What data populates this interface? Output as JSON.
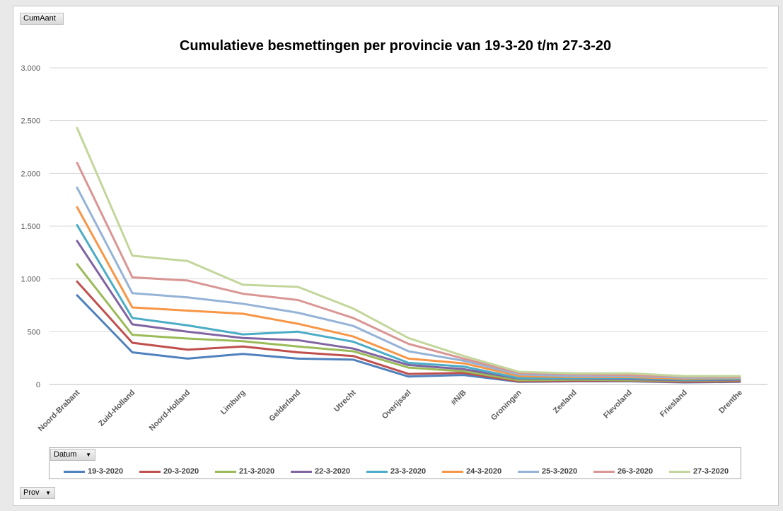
{
  "field_buttons": {
    "value_field": "CumAant",
    "legend_field": "Datum",
    "axis_field": "Prov"
  },
  "chart_data": {
    "type": "line",
    "title": "Cumulatieve besmettingen per provincie van 19-3-20 t/m 27-3-20",
    "xlabel": "",
    "ylabel": "",
    "ylim": [
      0,
      3000
    ],
    "yticks": [
      0,
      500,
      1000,
      1500,
      2000,
      2500,
      3000
    ],
    "ytick_labels": [
      "0",
      "500",
      "1.000",
      "1.500",
      "2.000",
      "2.500",
      "3.000"
    ],
    "grid": true,
    "legend_position": "bottom",
    "categories": [
      "Noord-Brabant",
      "Zuid-Holland",
      "Noord-Holland",
      "Limburg",
      "Gelderland",
      "Utrecht",
      "Overijssel",
      "#N/B",
      "Groningen",
      "Zeeland",
      "Flevoland",
      "Friesland",
      "Drenthe"
    ],
    "series": [
      {
        "name": "19-3-2020",
        "color": "#4f81bd",
        "values": [
          845,
          305,
          245,
          290,
          245,
          235,
          75,
          90,
          25,
          30,
          30,
          20,
          25
        ]
      },
      {
        "name": "20-3-2020",
        "color": "#c0504d",
        "values": [
          975,
          395,
          330,
          360,
          305,
          270,
          100,
          110,
          30,
          35,
          35,
          25,
          30
        ]
      },
      {
        "name": "21-3-2020",
        "color": "#9bbb59",
        "values": [
          1140,
          470,
          435,
          410,
          360,
          315,
          160,
          125,
          40,
          45,
          40,
          35,
          40
        ]
      },
      {
        "name": "22-3-2020",
        "color": "#8064a2",
        "values": [
          1360,
          570,
          500,
          440,
          420,
          340,
          185,
          145,
          55,
          55,
          50,
          40,
          45
        ]
      },
      {
        "name": "23-3-2020",
        "color": "#4bacc6",
        "values": [
          1510,
          630,
          560,
          475,
          500,
          405,
          205,
          170,
          60,
          60,
          60,
          45,
          50
        ]
      },
      {
        "name": "24-3-2020",
        "color": "#f79646",
        "values": [
          1680,
          730,
          700,
          670,
          575,
          455,
          245,
          200,
          80,
          70,
          70,
          55,
          60
        ]
      },
      {
        "name": "25-3-2020",
        "color": "#95b3d7",
        "values": [
          1865,
          865,
          825,
          765,
          680,
          555,
          315,
          225,
          95,
          80,
          80,
          65,
          65
        ]
      },
      {
        "name": "26-3-2020",
        "color": "#d99694",
        "values": [
          2100,
          1015,
          985,
          860,
          800,
          630,
          385,
          245,
          110,
          95,
          90,
          75,
          70
        ]
      },
      {
        "name": "27-3-2020",
        "color": "#c3d69b",
        "values": [
          2430,
          1220,
          1170,
          945,
          925,
          720,
          440,
          270,
          120,
          105,
          105,
          80,
          80
        ]
      }
    ]
  }
}
